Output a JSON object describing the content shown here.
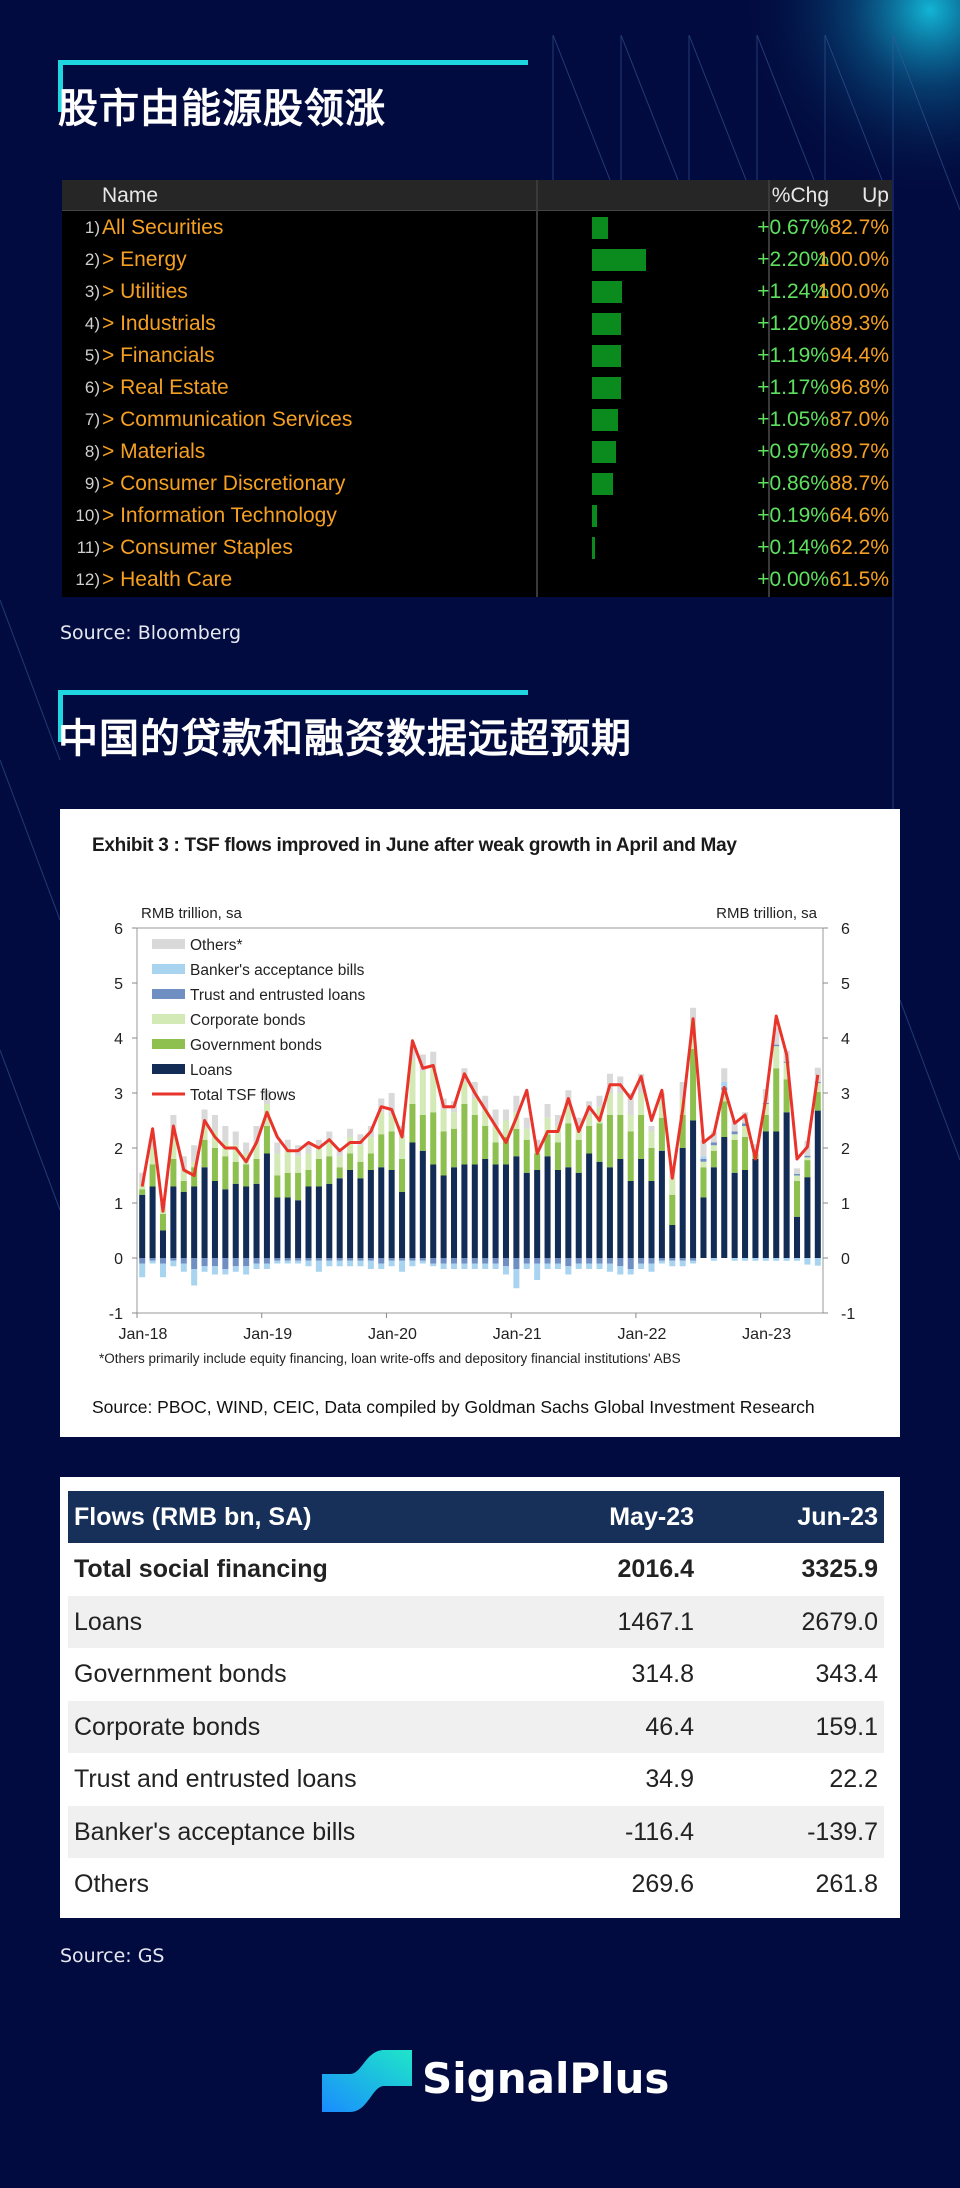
{
  "section1": {
    "title": "股市由能源股领涨",
    "source": "Source: Bloomberg"
  },
  "bloomberg": {
    "headers": {
      "name": "Name",
      "chg": "%Chg",
      "up": "Up"
    },
    "colors": {
      "name": "#f5a023",
      "chg": "#5ee05e",
      "bar": "#0b8a1e"
    },
    "rows": [
      {
        "num": "1)",
        "name": "All Securities",
        "chg": "+0.67%",
        "chg_value": 0.67,
        "up": "82.7%"
      },
      {
        "num": "2)",
        "name": "> Energy",
        "chg": "+2.20%",
        "chg_value": 2.2,
        "up": "100.0%"
      },
      {
        "num": "3)",
        "name": "> Utilities",
        "chg": "+1.24%",
        "chg_value": 1.24,
        "up": "100.0%"
      },
      {
        "num": "4)",
        "name": "> Industrials",
        "chg": "+1.20%",
        "chg_value": 1.2,
        "up": "89.3%"
      },
      {
        "num": "5)",
        "name": "> Financials",
        "chg": "+1.19%",
        "chg_value": 1.19,
        "up": "94.4%"
      },
      {
        "num": "6)",
        "name": "> Real Estate",
        "chg": "+1.17%",
        "chg_value": 1.17,
        "up": "96.8%"
      },
      {
        "num": "7)",
        "name": "> Communication Services",
        "chg": "+1.05%",
        "chg_value": 1.05,
        "up": "87.0%"
      },
      {
        "num": "8)",
        "name": "> Materials",
        "chg": "+0.97%",
        "chg_value": 0.97,
        "up": "89.7%"
      },
      {
        "num": "9)",
        "name": "> Consumer Discretionary",
        "chg": "+0.86%",
        "chg_value": 0.86,
        "up": "88.7%"
      },
      {
        "num": "10)",
        "name": "> Information Technology",
        "chg": "+0.19%",
        "chg_value": 0.19,
        "up": "64.6%"
      },
      {
        "num": "11)",
        "name": "> Consumer Staples",
        "chg": "+0.14%",
        "chg_value": 0.14,
        "up": "62.2%"
      },
      {
        "num": "12)",
        "name": "> Health Care",
        "chg": "+0.00%",
        "chg_value": 0.0,
        "up": "61.5%"
      }
    ]
  },
  "section2": {
    "title": "中国的贷款和融资数据远超预期",
    "source": "Source: GS"
  },
  "chart_data": {
    "type": "bar",
    "title": "Exhibit 3 : TSF flows improved in June after weak growth in April and May",
    "ylabel_left": "RMB trillion, sa",
    "ylabel_right": "RMB trillion, sa",
    "ylim": [
      -1,
      6
    ],
    "yticks": [
      "-1",
      "0",
      "1",
      "2",
      "3",
      "4",
      "5",
      "6"
    ],
    "xticks": [
      "Jan-18",
      "Jan-19",
      "Jan-20",
      "Jan-21",
      "Jan-22",
      "Jan-23"
    ],
    "x_start": "Jan-18",
    "x_end": "Jun-23",
    "footnote": "*Others primarily include equity financing, loan write-offs and depository financial institutions' ABS",
    "source": "Source: PBOC, WIND, CEIC, Data compiled by Goldman Sachs Global Investment Research",
    "legend_position": "top-left",
    "series": [
      {
        "name": "Others*",
        "color": "#d9d9d9",
        "values": [
          0.2,
          0.15,
          0.1,
          0.3,
          0.25,
          0.3,
          0.25,
          0.3,
          0.3,
          0.25,
          0.2,
          0.3,
          0.25,
          0.2,
          0.2,
          0.2,
          0.2,
          0.15,
          0.15,
          0.1,
          0.15,
          0.2,
          0.2,
          0.25,
          0.4,
          0.2,
          0.25,
          0.3,
          0.3,
          0.2,
          0.2,
          0.25,
          0.3,
          0.25,
          0.3,
          0.2,
          0.3,
          0.2,
          0.15,
          0.25,
          0.2,
          0.3,
          0.2,
          0.25,
          0.2,
          0.35,
          0.3,
          0.4,
          0.35,
          0.1,
          0.15,
          0.2,
          0.3,
          0.25,
          0.3,
          0.2,
          0.25,
          0.2,
          0.2,
          0.1,
          0.25,
          0.3,
          0.2,
          0.1,
          0.27,
          0.26
        ]
      },
      {
        "name": "Banker's acceptance bills",
        "color": "#a9d4ef",
        "values": [
          -0.25,
          -0.05,
          -0.25,
          -0.1,
          -0.15,
          -0.3,
          -0.1,
          -0.15,
          -0.1,
          -0.1,
          -0.15,
          -0.1,
          -0.1,
          -0.05,
          -0.05,
          -0.05,
          -0.1,
          -0.2,
          -0.1,
          -0.1,
          -0.1,
          -0.1,
          -0.15,
          -0.1,
          -0.1,
          -0.2,
          -0.1,
          -0.05,
          -0.05,
          -0.1,
          -0.1,
          -0.1,
          -0.1,
          -0.1,
          -0.1,
          -0.15,
          -0.35,
          -0.1,
          -0.3,
          -0.1,
          -0.1,
          -0.15,
          -0.1,
          -0.1,
          -0.1,
          -0.15,
          -0.15,
          -0.1,
          -0.1,
          -0.15,
          -0.05,
          -0.1,
          -0.1,
          -0.05,
          0.05,
          -0.05,
          0.1,
          -0.05,
          -0.05,
          -0.05,
          -0.05,
          -0.05,
          -0.05,
          -0.05,
          -0.12,
          -0.14
        ]
      },
      {
        "name": "Trust and entrusted loans",
        "color": "#6f8fc2",
        "values": [
          -0.1,
          -0.05,
          -0.1,
          -0.05,
          -0.1,
          -0.2,
          -0.15,
          -0.15,
          -0.2,
          -0.15,
          -0.15,
          -0.1,
          -0.1,
          -0.05,
          -0.05,
          -0.05,
          -0.05,
          -0.05,
          -0.05,
          -0.05,
          -0.05,
          -0.05,
          -0.05,
          -0.1,
          -0.05,
          -0.05,
          -0.05,
          -0.05,
          -0.1,
          -0.1,
          -0.1,
          -0.1,
          -0.1,
          -0.1,
          -0.1,
          -0.15,
          -0.2,
          -0.1,
          -0.1,
          -0.1,
          -0.1,
          -0.15,
          -0.1,
          -0.1,
          -0.1,
          -0.1,
          -0.15,
          -0.2,
          -0.1,
          -0.1,
          -0.05,
          -0.05,
          -0.05,
          -0.05,
          0.05,
          0.05,
          0.05,
          0.05,
          0.05,
          0.02,
          0.02,
          0.03,
          0.02,
          0.03,
          0.03,
          0.02
        ]
      },
      {
        "name": "Corporate bonds",
        "color": "#d3eab7",
        "values": [
          0.1,
          0.3,
          0.1,
          0.5,
          0.2,
          0.1,
          0.3,
          0.3,
          0.25,
          0.3,
          0.2,
          0.3,
          0.4,
          0.4,
          0.4,
          0.3,
          0.3,
          0.2,
          0.3,
          0.2,
          0.3,
          0.3,
          0.3,
          0.4,
          0.3,
          0.4,
          0.8,
          0.8,
          0.8,
          0.4,
          0.3,
          0.4,
          0.3,
          0.3,
          0.3,
          0.3,
          0.3,
          0.2,
          0.1,
          0.3,
          0.3,
          0.3,
          0.2,
          0.2,
          0.3,
          0.4,
          0.4,
          0.3,
          0.4,
          0.3,
          0.3,
          0.3,
          0.3,
          0.5,
          0.1,
          0.1,
          0.2,
          0.1,
          0.2,
          0.05,
          0.2,
          0.4,
          0.3,
          0.1,
          0.05,
          0.16
        ]
      },
      {
        "name": "Government bonds",
        "color": "#8dc04f",
        "values": [
          0.1,
          0.4,
          0.3,
          0.5,
          0.2,
          0.35,
          0.5,
          0.6,
          0.6,
          0.4,
          0.4,
          0.45,
          0.5,
          0.4,
          0.45,
          0.5,
          0.3,
          0.5,
          0.5,
          0.2,
          0.3,
          0.3,
          0.3,
          0.6,
          0.7,
          0.6,
          0.7,
          0.65,
          0.95,
          0.8,
          0.7,
          1.1,
          0.9,
          0.6,
          0.4,
          0.5,
          0.5,
          0.6,
          0.3,
          0.4,
          0.5,
          0.8,
          0.6,
          0.5,
          0.7,
          0.95,
          0.8,
          0.9,
          0.8,
          0.6,
          0.6,
          0.55,
          0.6,
          1.3,
          0.55,
          0.3,
          0.65,
          0.6,
          0.6,
          0.1,
          0.3,
          1.15,
          0.6,
          0.65,
          0.31,
          0.34
        ]
      },
      {
        "name": "Loans",
        "color": "#132c55",
        "values": [
          1.15,
          1.3,
          0.5,
          1.3,
          1.2,
          1.3,
          1.65,
          1.4,
          1.25,
          1.35,
          1.3,
          1.35,
          1.9,
          1.1,
          1.1,
          1.05,
          1.3,
          1.3,
          1.35,
          1.45,
          1.6,
          1.45,
          1.6,
          1.65,
          1.6,
          1.2,
          2.1,
          1.95,
          1.7,
          1.5,
          1.65,
          1.7,
          1.7,
          1.8,
          1.7,
          1.7,
          1.85,
          1.55,
          1.6,
          1.85,
          1.6,
          1.65,
          1.55,
          1.9,
          1.75,
          1.65,
          1.8,
          1.4,
          1.8,
          1.4,
          1.95,
          0.6,
          2.0,
          2.5,
          1.1,
          1.65,
          2.2,
          1.55,
          1.6,
          1.8,
          2.3,
          2.3,
          2.65,
          0.75,
          1.47,
          2.68
        ]
      },
      {
        "name": "Total TSF flows",
        "color": "#e8342a",
        "type": "line",
        "values": [
          1.3,
          2.35,
          0.85,
          2.4,
          1.6,
          1.5,
          2.5,
          2.2,
          2.0,
          2.0,
          1.75,
          2.1,
          2.65,
          2.2,
          1.95,
          1.95,
          2.1,
          2.0,
          2.15,
          1.95,
          2.1,
          2.1,
          2.3,
          2.75,
          2.7,
          2.2,
          3.95,
          3.45,
          3.5,
          2.75,
          2.75,
          3.35,
          3.0,
          2.7,
          2.4,
          2.1,
          2.55,
          3.05,
          1.9,
          2.3,
          2.3,
          2.9,
          2.3,
          2.75,
          2.5,
          3.15,
          3.15,
          2.9,
          3.3,
          2.5,
          3.05,
          1.45,
          2.7,
          4.35,
          2.1,
          2.25,
          3.1,
          2.45,
          2.6,
          1.8,
          2.9,
          4.4,
          3.7,
          1.8,
          2.02,
          3.33
        ]
      }
    ]
  },
  "gs_table": {
    "headers": [
      "Flows (RMB bn, SA)",
      "May-23",
      "Jun-23"
    ],
    "header_color": "#17305a",
    "rows": [
      [
        "Total social financing",
        "2016.4",
        "3325.9"
      ],
      [
        "Loans",
        "1467.1",
        "2679.0"
      ],
      [
        "Government bonds",
        "314.8",
        "343.4"
      ],
      [
        "Corporate bonds",
        "46.4",
        "159.1"
      ],
      [
        "Trust and entrusted loans",
        "34.9",
        "22.2"
      ],
      [
        "Banker's acceptance bills",
        "-116.4",
        "-139.7"
      ],
      [
        "Others",
        "269.6",
        "261.8"
      ]
    ]
  },
  "brand": {
    "name": "SignalPlus",
    "logo_icon": "signalplus-logo-icon"
  }
}
